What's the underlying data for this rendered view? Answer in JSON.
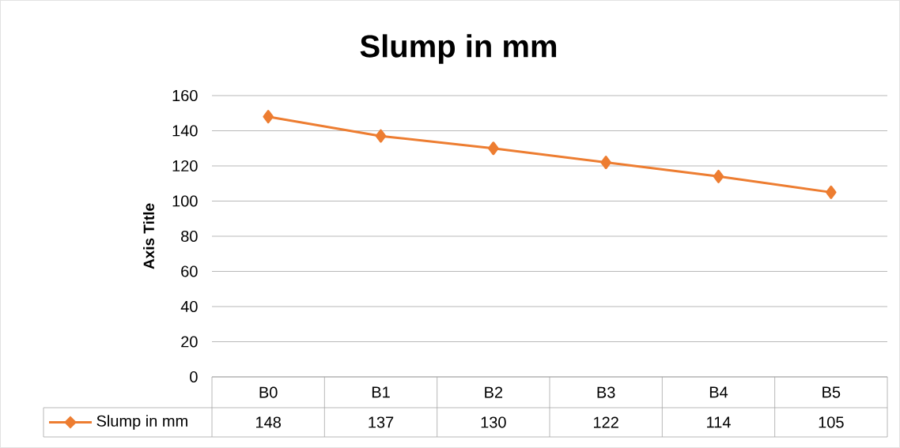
{
  "chart_data": {
    "type": "line",
    "title": "Slump in mm",
    "ylabel": "Axis Title",
    "categories": [
      "B0",
      "B1",
      "B2",
      "B3",
      "B4",
      "B5"
    ],
    "series": [
      {
        "name": "Slump in mm",
        "color": "#ed7d31",
        "values": [
          148,
          137,
          130,
          122,
          114,
          105
        ]
      }
    ],
    "ylim": [
      0,
      160
    ],
    "yticks": [
      0,
      20,
      40,
      60,
      80,
      100,
      120,
      140,
      160
    ],
    "grid": "y",
    "legend": "bottom",
    "marker": "diamond",
    "line_style": "solid",
    "data_labels": true
  }
}
